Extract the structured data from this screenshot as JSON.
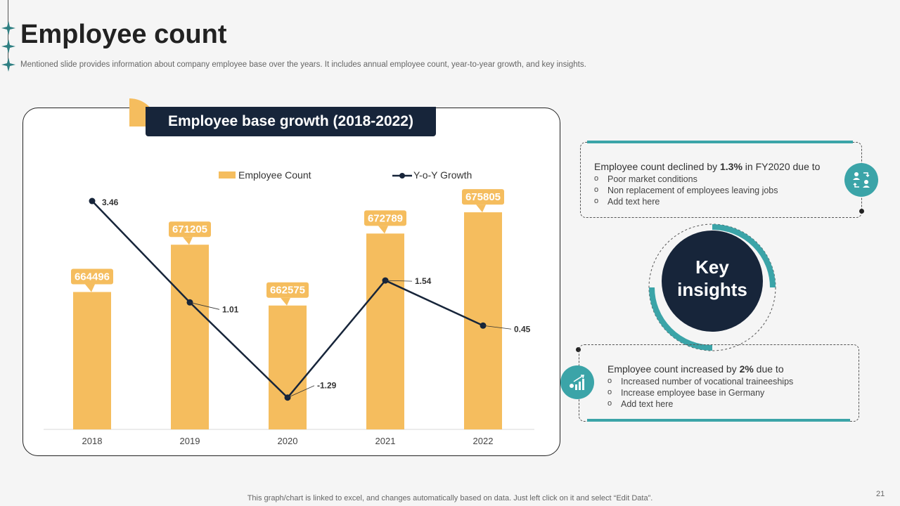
{
  "slide": {
    "title": "Employee count",
    "subtitle": "Mentioned slide provides information about company employee base over the years. It includes annual employee count, year-to-year growth, and key insights.",
    "footer": "This graph/chart is linked to excel, and changes automatically based on data. Just left click on it and select “Edit Data”.",
    "page_number": "21"
  },
  "chart_header": "Employee base growth (2018-2022)",
  "chart_data": {
    "type": "bar",
    "title": "Employee base growth (2018-2022)",
    "categories": [
      "2018",
      "2019",
      "2020",
      "2021",
      "2022"
    ],
    "series": [
      {
        "name": "Employee Count",
        "kind": "bar",
        "values": [
          664496,
          671205,
          662575,
          672789,
          675805
        ]
      },
      {
        "name": "Y-o-Y Growth",
        "kind": "line",
        "values": [
          3.46,
          1.01,
          -1.29,
          1.54,
          0.45
        ]
      }
    ],
    "bar_ylim": [
      645000,
      680000
    ],
    "line_ylim": [
      -1.6,
      3.8
    ],
    "legend": [
      "Employee Count",
      "Y-o-Y Growth"
    ],
    "legend_position": "top",
    "colors": {
      "bar": "#f5bd5e",
      "line": "#17253a"
    }
  },
  "key_insights": {
    "label_line1": "Key",
    "label_line2": "insights",
    "top": {
      "head_prefix": "Employee count declined by ",
      "head_bold": "1.3%",
      "head_suffix": " in FY2020 due to",
      "items": [
        "Poor market conditions",
        " Non replacement of employees leaving jobs",
        "Add text here"
      ]
    },
    "bottom": {
      "head_prefix": "Employee count increased by ",
      "head_bold": "2%",
      "head_suffix": " due to",
      "items": [
        "Increased number of vocational traineeships",
        "Increase employee base in Germany",
        "Add text here"
      ]
    }
  },
  "colors": {
    "teal": "#3ba4a8",
    "navy": "#17253a",
    "gold": "#f5bd5e"
  }
}
